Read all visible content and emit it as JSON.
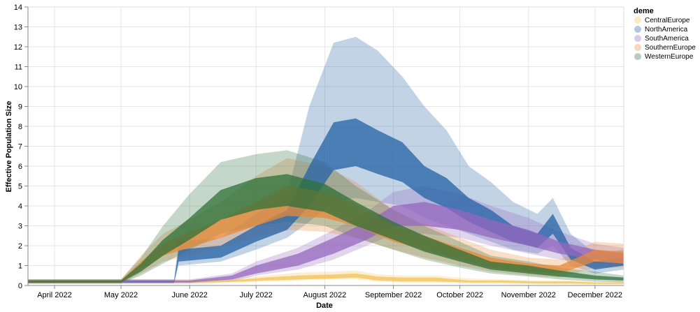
{
  "chart_data": {
    "type": "area",
    "xlabel": "Date",
    "ylabel": "Effective Population Size",
    "ylim": [
      0,
      14
    ],
    "xlim": [
      "2022-03-20",
      "2022-12-14"
    ],
    "x_ticks": [
      {
        "date": "2022-04-01",
        "label": "April 2022"
      },
      {
        "date": "2022-05-01",
        "label": "May 2022"
      },
      {
        "date": "2022-06-01",
        "label": "June 2022"
      },
      {
        "date": "2022-07-01",
        "label": "July 2022"
      },
      {
        "date": "2022-08-01",
        "label": "August 2022"
      },
      {
        "date": "2022-09-01",
        "label": "September 2022"
      },
      {
        "date": "2022-10-01",
        "label": "October 2022"
      },
      {
        "date": "2022-11-01",
        "label": "November 2022"
      },
      {
        "date": "2022-12-01",
        "label": "December 2022"
      }
    ],
    "y_ticks": [
      0,
      1,
      2,
      3,
      4,
      5,
      6,
      7,
      8,
      9,
      10,
      11,
      12,
      13,
      14
    ],
    "grid": true,
    "legend": {
      "title": "deme",
      "placement": "right"
    },
    "series": [
      {
        "name": "CentralEurope",
        "color": "#f3c257",
        "x": [
          "2022-03-20",
          "2022-05-01",
          "2022-05-20",
          "2022-06-10",
          "2022-06-25",
          "2022-07-05",
          "2022-07-20",
          "2022-08-05",
          "2022-08-15",
          "2022-08-25",
          "2022-09-05",
          "2022-09-20",
          "2022-10-05",
          "2022-10-20",
          "2022-11-05",
          "2022-11-20",
          "2022-12-01",
          "2022-12-14"
        ],
        "median": [
          0.2,
          0.2,
          0.2,
          0.2,
          0.25,
          0.3,
          0.4,
          0.45,
          0.5,
          0.35,
          0.3,
          0.3,
          0.2,
          0.2,
          0.15,
          0.15,
          0.1,
          0.1
        ],
        "inner_low": [
          0.15,
          0.15,
          0.15,
          0.15,
          0.2,
          0.25,
          0.3,
          0.35,
          0.4,
          0.25,
          0.2,
          0.2,
          0.15,
          0.15,
          0.1,
          0.1,
          0.08,
          0.08
        ],
        "inner_high": [
          0.25,
          0.25,
          0.25,
          0.25,
          0.3,
          0.4,
          0.5,
          0.55,
          0.6,
          0.45,
          0.4,
          0.4,
          0.25,
          0.25,
          0.2,
          0.2,
          0.15,
          0.15
        ],
        "outer_low": [
          0.1,
          0.1,
          0.1,
          0.1,
          0.15,
          0.2,
          0.25,
          0.3,
          0.3,
          0.2,
          0.15,
          0.15,
          0.1,
          0.1,
          0.05,
          0.05,
          0.05,
          0.05
        ],
        "outer_high": [
          0.3,
          0.3,
          0.3,
          0.3,
          0.4,
          0.5,
          0.65,
          0.7,
          0.75,
          0.55,
          0.5,
          0.5,
          0.35,
          0.3,
          0.25,
          0.25,
          0.2,
          0.2
        ]
      },
      {
        "name": "NorthAmerica",
        "color": "#2461a6",
        "x": [
          "2022-03-20",
          "2022-05-25",
          "2022-05-27",
          "2022-06-15",
          "2022-07-01",
          "2022-07-15",
          "2022-07-25",
          "2022-08-05",
          "2022-08-15",
          "2022-08-25",
          "2022-09-05",
          "2022-09-15",
          "2022-09-25",
          "2022-10-05",
          "2022-10-15",
          "2022-10-25",
          "2022-11-05",
          "2022-11-12",
          "2022-11-20",
          "2022-12-01",
          "2022-12-14"
        ],
        "median": [
          0.2,
          0.2,
          1.5,
          1.7,
          2.6,
          3.2,
          5.0,
          7.2,
          7.2,
          6.8,
          6.2,
          5.2,
          4.6,
          3.8,
          3.2,
          2.6,
          2.2,
          3.2,
          1.6,
          1.0,
          1.2
        ],
        "inner_low": [
          0.15,
          0.15,
          1.2,
          1.4,
          2.2,
          2.8,
          4.0,
          5.8,
          6.0,
          5.6,
          5.2,
          4.4,
          3.9,
          3.2,
          2.7,
          2.2,
          1.9,
          2.6,
          1.3,
          0.8,
          1.0
        ],
        "inner_high": [
          0.25,
          0.25,
          1.8,
          2.0,
          3.0,
          3.8,
          6.0,
          8.2,
          8.4,
          7.8,
          7.2,
          6.0,
          5.4,
          4.4,
          3.8,
          3.0,
          2.6,
          3.6,
          1.9,
          1.2,
          1.4
        ],
        "outer_low": [
          0.1,
          0.1,
          1.0,
          1.2,
          1.8,
          2.4,
          3.2,
          4.2,
          4.4,
          4.2,
          4.0,
          3.4,
          3.0,
          2.6,
          2.2,
          1.8,
          1.6,
          2.0,
          1.0,
          0.6,
          0.8
        ],
        "outer_high": [
          0.3,
          0.3,
          2.2,
          2.4,
          3.6,
          4.6,
          9.0,
          12.2,
          12.5,
          11.8,
          10.5,
          9.0,
          7.8,
          6.0,
          5.2,
          4.2,
          3.6,
          4.4,
          2.6,
          1.6,
          1.8
        ]
      },
      {
        "name": "SouthAmerica",
        "color": "#9467bd",
        "x": [
          "2022-03-20",
          "2022-06-01",
          "2022-06-20",
          "2022-07-01",
          "2022-07-20",
          "2022-08-05",
          "2022-08-20",
          "2022-09-01",
          "2022-09-15",
          "2022-10-01",
          "2022-10-15",
          "2022-11-01",
          "2022-11-15",
          "2022-12-01",
          "2022-12-14"
        ],
        "median": [
          0.2,
          0.2,
          0.4,
          0.8,
          1.3,
          2.0,
          2.8,
          3.5,
          3.6,
          3.3,
          2.9,
          2.4,
          1.9,
          1.6,
          1.4
        ],
        "inner_low": [
          0.15,
          0.15,
          0.3,
          0.6,
          1.0,
          1.6,
          2.3,
          3.0,
          3.0,
          2.8,
          2.4,
          2.0,
          1.6,
          1.3,
          1.1
        ],
        "inner_high": [
          0.25,
          0.25,
          0.5,
          1.0,
          1.6,
          2.4,
          3.2,
          4.0,
          4.2,
          3.8,
          3.3,
          2.8,
          2.2,
          1.8,
          1.6
        ],
        "outer_low": [
          0.1,
          0.1,
          0.2,
          0.5,
          0.8,
          1.3,
          2.0,
          2.6,
          2.6,
          2.4,
          2.0,
          1.6,
          1.3,
          1.1,
          1.0
        ],
        "outer_high": [
          0.3,
          0.3,
          0.6,
          1.2,
          1.9,
          2.8,
          3.7,
          4.7,
          5.0,
          4.6,
          4.0,
          3.4,
          2.7,
          2.1,
          1.9
        ]
      },
      {
        "name": "SouthernEurope",
        "color": "#e8893a",
        "x": [
          "2022-03-20",
          "2022-05-01",
          "2022-05-10",
          "2022-05-20",
          "2022-06-01",
          "2022-06-15",
          "2022-07-01",
          "2022-07-15",
          "2022-08-01",
          "2022-08-15",
          "2022-09-01",
          "2022-09-15",
          "2022-10-01",
          "2022-10-15",
          "2022-11-01",
          "2022-11-15",
          "2022-12-01",
          "2022-12-14"
        ],
        "median": [
          0.2,
          0.2,
          1.0,
          1.8,
          2.3,
          2.8,
          3.5,
          4.2,
          4.0,
          3.5,
          2.6,
          2.1,
          1.6,
          1.1,
          0.9,
          0.8,
          1.5,
          1.4
        ],
        "inner_low": [
          0.15,
          0.15,
          0.8,
          1.5,
          1.9,
          2.4,
          3.0,
          3.5,
          3.4,
          3.0,
          2.2,
          1.8,
          1.3,
          0.9,
          0.7,
          0.6,
          1.2,
          1.1
        ],
        "inner_high": [
          0.25,
          0.25,
          1.2,
          2.1,
          2.7,
          3.3,
          4.2,
          5.0,
          4.7,
          4.1,
          3.0,
          2.5,
          1.9,
          1.4,
          1.1,
          1.0,
          1.8,
          1.7
        ],
        "outer_low": [
          0.1,
          0.1,
          0.6,
          1.2,
          1.5,
          1.9,
          2.4,
          2.8,
          2.7,
          2.4,
          1.8,
          1.4,
          1.0,
          0.7,
          0.5,
          0.4,
          0.9,
          0.9
        ],
        "outer_high": [
          0.3,
          0.3,
          1.5,
          2.6,
          3.3,
          4.2,
          5.5,
          6.4,
          6.0,
          5.2,
          3.8,
          3.1,
          2.4,
          1.8,
          1.4,
          1.3,
          2.2,
          2.1
        ]
      },
      {
        "name": "WesternEurope",
        "color": "#2e7038",
        "x": [
          "2022-03-20",
          "2022-05-01",
          "2022-05-10",
          "2022-05-20",
          "2022-06-01",
          "2022-06-15",
          "2022-07-01",
          "2022-07-15",
          "2022-08-01",
          "2022-08-15",
          "2022-09-01",
          "2022-09-15",
          "2022-10-01",
          "2022-10-15",
          "2022-11-01",
          "2022-11-15",
          "2022-12-01",
          "2022-12-14"
        ],
        "median": [
          0.2,
          0.2,
          0.9,
          1.9,
          2.8,
          4.0,
          4.6,
          4.8,
          4.4,
          3.6,
          2.8,
          2.1,
          1.5,
          1.0,
          0.8,
          0.6,
          0.4,
          0.3
        ],
        "inner_low": [
          0.15,
          0.15,
          0.7,
          1.5,
          2.3,
          3.3,
          3.8,
          4.0,
          3.7,
          3.0,
          2.3,
          1.7,
          1.2,
          0.8,
          0.6,
          0.45,
          0.3,
          0.25
        ],
        "inner_high": [
          0.25,
          0.25,
          1.1,
          2.3,
          3.4,
          4.8,
          5.4,
          5.6,
          5.1,
          4.2,
          3.2,
          2.5,
          1.8,
          1.2,
          1.0,
          0.75,
          0.5,
          0.4
        ],
        "outer_low": [
          0.1,
          0.1,
          0.5,
          1.1,
          1.8,
          2.6,
          3.0,
          3.2,
          3.0,
          2.4,
          1.8,
          1.3,
          0.9,
          0.6,
          0.45,
          0.3,
          0.2,
          0.15
        ],
        "outer_high": [
          0.3,
          0.3,
          1.4,
          3.0,
          4.6,
          6.2,
          6.6,
          6.8,
          6.2,
          5.0,
          3.8,
          3.0,
          2.2,
          1.5,
          1.2,
          0.9,
          0.7,
          0.5
        ]
      }
    ]
  }
}
